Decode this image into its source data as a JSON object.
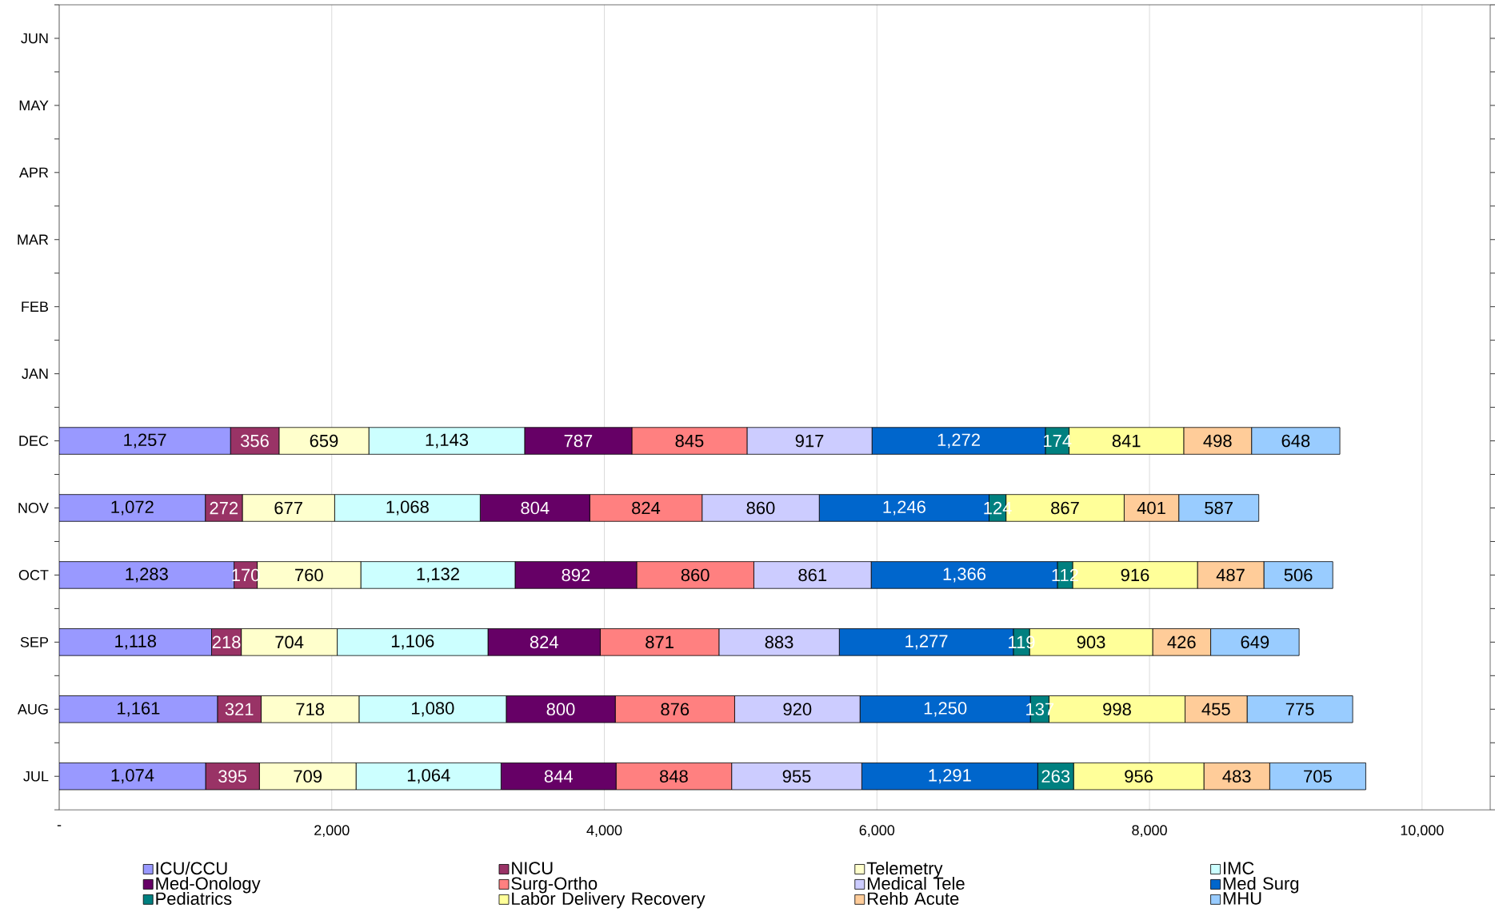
{
  "chart_data": {
    "type": "bar",
    "orientation": "horizontal",
    "stacked": true,
    "categories": [
      "JUN",
      "MAY",
      "APR",
      "MAR",
      "FEB",
      "JAN",
      "DEC",
      "NOV",
      "OCT",
      "SEP",
      "AUG",
      "JUL"
    ],
    "series": [
      {
        "name": "ICU/CCU",
        "color": "#9999ff",
        "values": [
          null,
          null,
          null,
          null,
          null,
          null,
          1257,
          1072,
          1283,
          1118,
          1161,
          1074
        ],
        "value_labels": [
          null,
          null,
          null,
          null,
          null,
          null,
          "1,257",
          "1,072",
          "1,283",
          "1,118",
          "1,161",
          "1,074"
        ]
      },
      {
        "name": "NICU",
        "color": "#993366",
        "values": [
          null,
          null,
          null,
          null,
          null,
          null,
          356,
          272,
          170,
          218,
          321,
          395
        ],
        "value_labels": [
          null,
          null,
          null,
          null,
          null,
          null,
          "356",
          "272",
          "170",
          "218",
          "321",
          "395"
        ]
      },
      {
        "name": "Telemetry",
        "color": "#ffffcc",
        "values": [
          null,
          null,
          null,
          null,
          null,
          null,
          659,
          677,
          760,
          704,
          718,
          709
        ],
        "value_labels": [
          null,
          null,
          null,
          null,
          null,
          null,
          "659",
          "677",
          "760",
          "704",
          "718",
          "709"
        ]
      },
      {
        "name": "IMC",
        "color": "#ccffff",
        "values": [
          null,
          null,
          null,
          null,
          null,
          null,
          1143,
          1068,
          1132,
          1106,
          1080,
          1064
        ],
        "value_labels": [
          null,
          null,
          null,
          null,
          null,
          null,
          "1,143",
          "1,068",
          "1,132",
          "1,106",
          "1,080",
          "1,064"
        ]
      },
      {
        "name": "Med-Onology",
        "color": "#660066",
        "values": [
          null,
          null,
          null,
          null,
          null,
          null,
          787,
          804,
          892,
          824,
          800,
          844
        ],
        "value_labels": [
          null,
          null,
          null,
          null,
          null,
          null,
          "787",
          "804",
          "892",
          "824",
          "800",
          "844"
        ]
      },
      {
        "name": "Surg-Ortho",
        "color": "#ff8080",
        "values": [
          null,
          null,
          null,
          null,
          null,
          null,
          845,
          824,
          860,
          871,
          876,
          848
        ],
        "value_labels": [
          null,
          null,
          null,
          null,
          null,
          null,
          "845",
          "824",
          "860",
          "871",
          "876",
          "848"
        ]
      },
      {
        "name": "Medical Tele",
        "color": "#ccccff",
        "values": [
          null,
          null,
          null,
          null,
          null,
          null,
          917,
          860,
          861,
          883,
          920,
          955
        ],
        "value_labels": [
          null,
          null,
          null,
          null,
          null,
          null,
          "917",
          "860",
          "861",
          "883",
          "920",
          "955"
        ]
      },
      {
        "name": "Med Surg",
        "color": "#0066cc",
        "values": [
          null,
          null,
          null,
          null,
          null,
          null,
          1272,
          1246,
          1366,
          1277,
          1250,
          1291
        ],
        "value_labels": [
          null,
          null,
          null,
          null,
          null,
          null,
          "1,272",
          "1,246",
          "1,366",
          "1,277",
          "1,250",
          "1,291"
        ]
      },
      {
        "name": "Pediatrics",
        "color": "#008080",
        "values": [
          null,
          null,
          null,
          null,
          null,
          null,
          174,
          124,
          112,
          119,
          137,
          263
        ],
        "value_labels": [
          null,
          null,
          null,
          null,
          null,
          null,
          "174",
          "124",
          "112",
          "119",
          "137",
          "263"
        ]
      },
      {
        "name": "Labor Delivery Recovery",
        "color": "#ffff99",
        "values": [
          null,
          null,
          null,
          null,
          null,
          null,
          841,
          867,
          916,
          903,
          998,
          956
        ],
        "value_labels": [
          null,
          null,
          null,
          null,
          null,
          null,
          "841",
          "867",
          "916",
          "903",
          "998",
          "956"
        ]
      },
      {
        "name": "Rehb Acute",
        "color": "#ffcc99",
        "values": [
          null,
          null,
          null,
          null,
          null,
          null,
          498,
          401,
          487,
          426,
          455,
          483
        ],
        "value_labels": [
          null,
          null,
          null,
          null,
          null,
          null,
          "498",
          "401",
          "487",
          "426",
          "455",
          "483"
        ]
      },
      {
        "name": "MHU",
        "color": "#99ccff",
        "values": [
          null,
          null,
          null,
          null,
          null,
          null,
          648,
          587,
          506,
          649,
          775,
          705
        ],
        "value_labels": [
          null,
          null,
          null,
          null,
          null,
          null,
          "648",
          "587",
          "506",
          "649",
          "775",
          "705"
        ]
      }
    ],
    "xlim": [
      0,
      10500
    ],
    "xticks": [
      {
        "value": 0,
        "label": "-"
      },
      {
        "value": 2000,
        "label": "2,000"
      },
      {
        "value": 4000,
        "label": "4,000"
      },
      {
        "value": 6000,
        "label": "6,000"
      },
      {
        "value": 8000,
        "label": "8,000"
      },
      {
        "value": 10000,
        "label": "10,000"
      }
    ],
    "grid": "x",
    "legend": "bottom"
  }
}
